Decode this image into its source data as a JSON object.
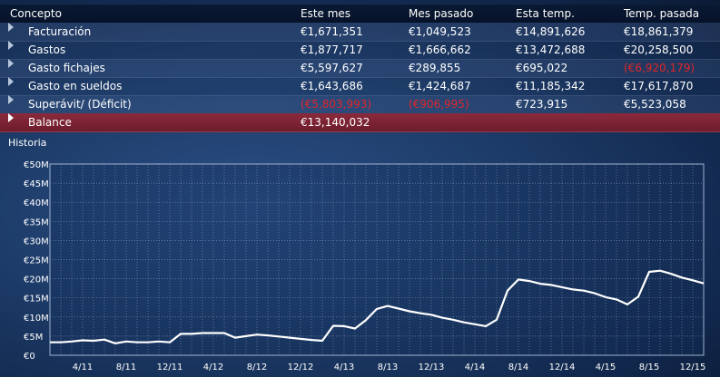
{
  "table": {
    "headers": [
      "Concepto",
      "Este mes",
      "Mes pasado",
      "Esta temp.",
      "Temp. pasada"
    ],
    "rows": [
      {
        "concept": "Facturación",
        "cells": [
          {
            "text": "€1,671,351",
            "negative": false
          },
          {
            "text": "€1,049,523",
            "negative": false
          },
          {
            "text": "€14,891,626",
            "negative": false
          },
          {
            "text": "€18,861,379",
            "negative": false
          }
        ]
      },
      {
        "concept": "Gastos",
        "cells": [
          {
            "text": "€1,877,717",
            "negative": false
          },
          {
            "text": "€1,666,662",
            "negative": false
          },
          {
            "text": "€13,472,688",
            "negative": false
          },
          {
            "text": "€20,258,500",
            "negative": false
          }
        ]
      },
      {
        "concept": "Gasto fichajes",
        "cells": [
          {
            "text": "€5,597,627",
            "negative": false
          },
          {
            "text": "€289,855",
            "negative": false
          },
          {
            "text": "€695,022",
            "negative": false
          },
          {
            "text": "(€6,920,179)",
            "negative": true
          }
        ]
      },
      {
        "concept": "Gasto en sueldos",
        "cells": [
          {
            "text": "€1,643,686",
            "negative": false
          },
          {
            "text": "€1,424,687",
            "negative": false
          },
          {
            "text": "€11,185,342",
            "negative": false
          },
          {
            "text": "€17,617,870",
            "negative": false
          }
        ]
      },
      {
        "concept": "Superávit/ (Déficit)",
        "cells": [
          {
            "text": "(€5,803,993)",
            "negative": true
          },
          {
            "text": "(€906,995)",
            "negative": true
          },
          {
            "text": "€723,915",
            "negative": false
          },
          {
            "text": "€5,523,058",
            "negative": false
          }
        ]
      }
    ],
    "balance": {
      "concept": "Balance",
      "value": "€13,140,032"
    }
  },
  "history_label": "Historia",
  "colors": {
    "negative": "#e0252a",
    "balance_row": "#7a2233",
    "line": "#ffffff",
    "grid": "#8fa3c4"
  },
  "chart_data": {
    "type": "line",
    "title": "",
    "xlabel": "",
    "ylabel": "",
    "grid": true,
    "ylim": [
      0,
      50
    ],
    "y_unit": "€M",
    "y_ticks": [
      "€0",
      "€5M",
      "€10M",
      "€15M",
      "€20M",
      "€25M",
      "€30M",
      "€35M",
      "€40M",
      "€45M",
      "€50M"
    ],
    "x_ticks": [
      "4/11",
      "8/11",
      "12/11",
      "4/12",
      "8/12",
      "12/12",
      "4/13",
      "8/13",
      "12/13",
      "4/14",
      "8/14",
      "12/14",
      "4/15",
      "8/15",
      "12/15"
    ],
    "series": [
      {
        "values": [
          3.4,
          3.4,
          3.6,
          3.9,
          3.8,
          4.1,
          3.1,
          3.6,
          3.4,
          3.4,
          3.6,
          3.4,
          5.6,
          5.6,
          5.8,
          5.8,
          5.8,
          4.6,
          5.0,
          5.4,
          5.2,
          4.9,
          4.6,
          4.3,
          4.0,
          3.8,
          7.7,
          7.6,
          7.0,
          9.2,
          12.1,
          12.9,
          12.2,
          11.5,
          11.0,
          10.6,
          9.8,
          9.3,
          8.6,
          8.1,
          7.6,
          9.3,
          16.9,
          19.8,
          19.4,
          18.7,
          18.4,
          17.8,
          17.2,
          16.9,
          16.2,
          15.2,
          14.6,
          13.3,
          15.3,
          21.8,
          22.1,
          21.3,
          20.3,
          19.6,
          18.8
        ]
      }
    ]
  }
}
